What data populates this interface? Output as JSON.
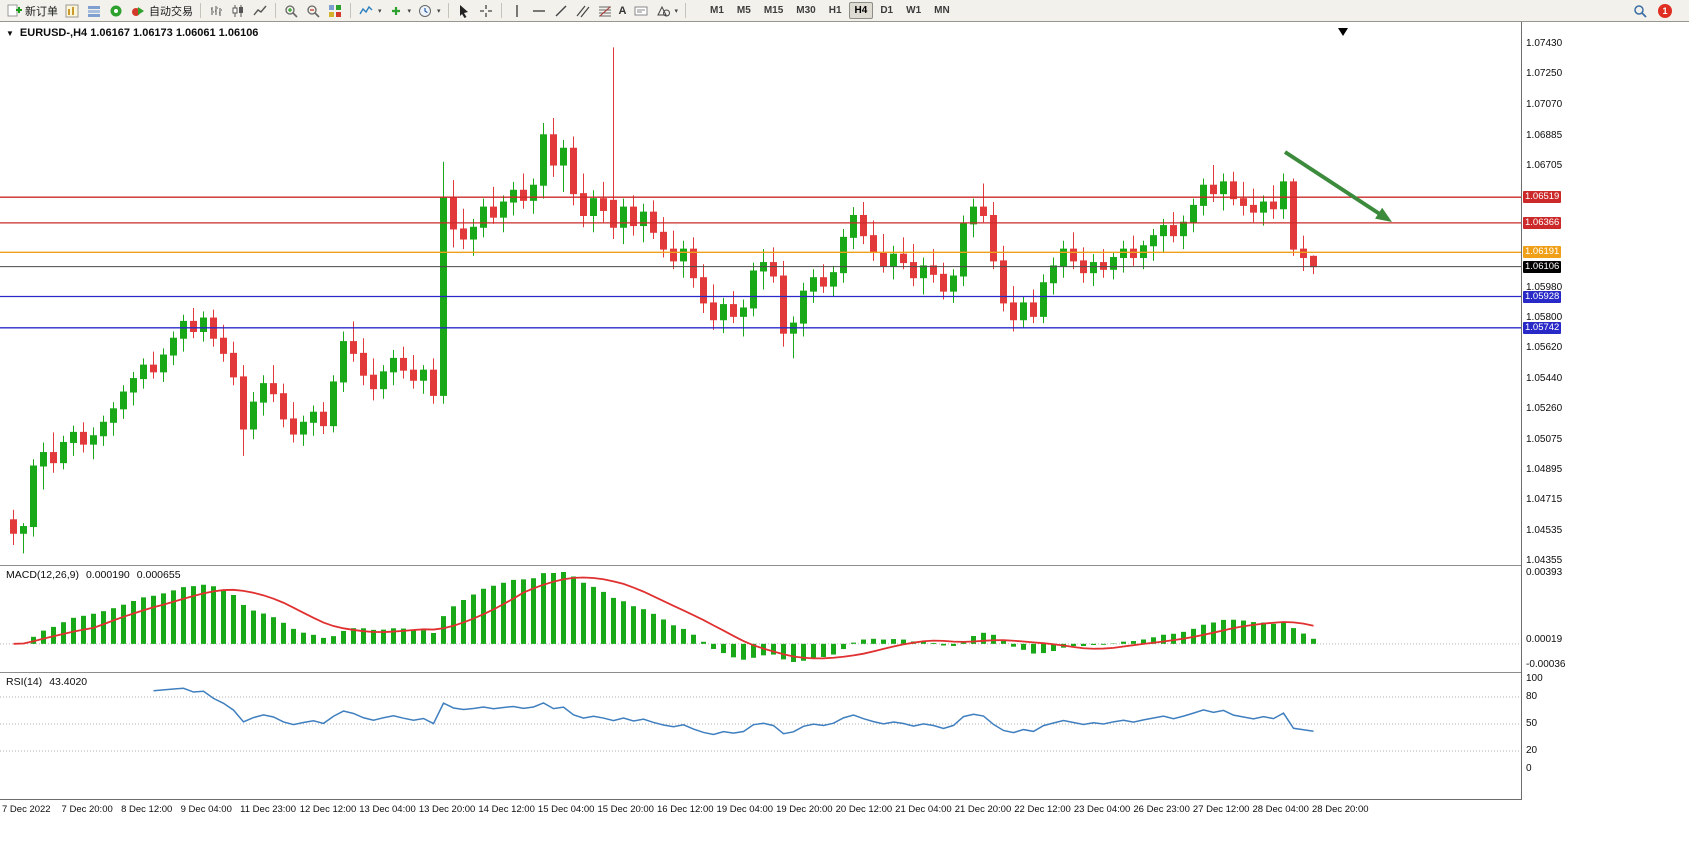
{
  "toolbar": {
    "new_order_label": "新订单",
    "auto_trading_label": "自动交易",
    "timeframes": [
      "M1",
      "M5",
      "M15",
      "M30",
      "H1",
      "H4",
      "D1",
      "W1",
      "MN"
    ],
    "active_timeframe": "H4",
    "notification_badge": "1"
  },
  "icons": {
    "collapse_arrow": "▼",
    "dropdown_arrow": "▾",
    "text_tool": "A"
  },
  "chart": {
    "title": "EURUSD-,H4  1.06167 1.06173 1.06061 1.06106"
  },
  "chart_data": {
    "type": "candlestick",
    "symbol": "EURUSD-",
    "timeframe": "H4",
    "open": "1.06167",
    "high": "1.06173",
    "low": "1.06061",
    "close": "1.06106",
    "up_color": "#18a818",
    "down_color": "#e23a3a",
    "price_axis": {
      "max": 1.0743,
      "min": 1.04355,
      "labels": [
        "1.07430",
        "1.07250",
        "1.07070",
        "1.06885",
        "1.06705",
        "1.05980",
        "1.05800",
        "1.05620",
        "1.05440",
        "1.05260",
        "1.05075",
        "1.04895",
        "1.04715",
        "1.04535",
        "1.04355"
      ]
    },
    "hlines": [
      {
        "price": 1.06519,
        "label": "1.06519",
        "color": "#cc2a2a"
      },
      {
        "price": 1.06366,
        "label": "1.06366",
        "color": "#cc2a2a"
      },
      {
        "price": 1.06191,
        "label": "1.06191",
        "color": "#efa018"
      },
      {
        "price": 1.05928,
        "label": "1.05928",
        "color": "#2929c8"
      },
      {
        "price": 1.05742,
        "label": "1.05742",
        "color": "#2929c8"
      }
    ],
    "current_price": {
      "value": 1.06106,
      "label": "1.06106",
      "line_color": "#4a4a4a",
      "tag_color": "#000000"
    },
    "arrow": {
      "from": [
        1285,
        130
      ],
      "to": [
        1392,
        200
      ],
      "color": "#3c8a3c"
    },
    "candles": [
      [
        1.046,
        1.0466,
        1.0445,
        1.0452
      ],
      [
        1.0452,
        1.0458,
        1.044,
        1.0456
      ],
      [
        1.0456,
        1.0496,
        1.045,
        1.0492
      ],
      [
        1.0492,
        1.0506,
        1.0478,
        1.05
      ],
      [
        1.05,
        1.0512,
        1.0488,
        1.0494
      ],
      [
        1.0494,
        1.051,
        1.049,
        1.0506
      ],
      [
        1.0506,
        1.0516,
        1.0498,
        1.0512
      ],
      [
        1.0512,
        1.0518,
        1.05,
        1.0505
      ],
      [
        1.0505,
        1.0515,
        1.0496,
        1.051
      ],
      [
        1.051,
        1.0522,
        1.0504,
        1.0518
      ],
      [
        1.0518,
        1.053,
        1.051,
        1.0526
      ],
      [
        1.0526,
        1.054,
        1.052,
        1.0536
      ],
      [
        1.0536,
        1.0548,
        1.0528,
        1.0544
      ],
      [
        1.0544,
        1.0556,
        1.0538,
        1.0552
      ],
      [
        1.0552,
        1.056,
        1.0544,
        1.0548
      ],
      [
        1.0548,
        1.0562,
        1.0542,
        1.0558
      ],
      [
        1.0558,
        1.0572,
        1.0552,
        1.0568
      ],
      [
        1.0568,
        1.0582,
        1.056,
        1.0578
      ],
      [
        1.0578,
        1.0586,
        1.0568,
        1.0572
      ],
      [
        1.0572,
        1.0584,
        1.0566,
        1.058
      ],
      [
        1.058,
        1.0585,
        1.0563,
        1.0568
      ],
      [
        1.0568,
        1.0576,
        1.0554,
        1.0559
      ],
      [
        1.0559,
        1.0566,
        1.054,
        1.0545
      ],
      [
        1.0545,
        1.0552,
        1.0498,
        1.0514
      ],
      [
        1.0514,
        1.0536,
        1.0508,
        1.053
      ],
      [
        1.053,
        1.0546,
        1.0522,
        1.0541
      ],
      [
        1.0541,
        1.0552,
        1.053,
        1.0535
      ],
      [
        1.0535,
        1.0541,
        1.0515,
        1.052
      ],
      [
        1.052,
        1.053,
        1.0506,
        1.0511
      ],
      [
        1.0511,
        1.0522,
        1.0504,
        1.0518
      ],
      [
        1.0518,
        1.0528,
        1.051,
        1.0524
      ],
      [
        1.0524,
        1.053,
        1.0511,
        1.0516
      ],
      [
        1.0516,
        1.0546,
        1.0512,
        1.0542
      ],
      [
        1.0542,
        1.0572,
        1.0536,
        1.0566
      ],
      [
        1.0566,
        1.0578,
        1.0554,
        1.0559
      ],
      [
        1.0559,
        1.0568,
        1.054,
        1.0546
      ],
      [
        1.0546,
        1.0556,
        1.0531,
        1.0538
      ],
      [
        1.0538,
        1.0552,
        1.0532,
        1.0548
      ],
      [
        1.0548,
        1.0561,
        1.054,
        1.0556
      ],
      [
        1.0556,
        1.0563,
        1.0544,
        1.0549
      ],
      [
        1.0549,
        1.0558,
        1.0538,
        1.0543
      ],
      [
        1.0543,
        1.0552,
        1.0535,
        1.0549
      ],
      [
        1.0549,
        1.0556,
        1.0529,
        1.0534
      ],
      [
        1.0534,
        1.0673,
        1.0529,
        1.0652
      ],
      [
        1.0652,
        1.0662,
        1.0622,
        1.0633
      ],
      [
        1.0633,
        1.0645,
        1.0621,
        1.0627
      ],
      [
        1.0627,
        1.0639,
        1.0617,
        1.0634
      ],
      [
        1.0634,
        1.0651,
        1.0628,
        1.0646
      ],
      [
        1.0646,
        1.0658,
        1.0636,
        1.064
      ],
      [
        1.064,
        1.0653,
        1.0631,
        1.0649
      ],
      [
        1.0649,
        1.0661,
        1.0641,
        1.0656
      ],
      [
        1.0656,
        1.0666,
        1.0645,
        1.065
      ],
      [
        1.065,
        1.0663,
        1.0642,
        1.0659
      ],
      [
        1.0659,
        1.0696,
        1.0651,
        1.0689
      ],
      [
        1.0689,
        1.0699,
        1.0664,
        1.0671
      ],
      [
        1.0671,
        1.0686,
        1.0655,
        1.0681
      ],
      [
        1.0681,
        1.0688,
        1.0647,
        1.0654
      ],
      [
        1.0654,
        1.0666,
        1.0634,
        1.0641
      ],
      [
        1.0641,
        1.0656,
        1.0631,
        1.0651
      ],
      [
        1.0651,
        1.0661,
        1.0637,
        1.0644
      ],
      [
        1.065,
        1.0741,
        1.0627,
        1.0634
      ],
      [
        1.0634,
        1.0651,
        1.0624,
        1.0646
      ],
      [
        1.0646,
        1.0653,
        1.0629,
        1.0635
      ],
      [
        1.0635,
        1.0648,
        1.0625,
        1.0643
      ],
      [
        1.0643,
        1.065,
        1.0627,
        1.0631
      ],
      [
        1.0631,
        1.064,
        1.0616,
        1.0621
      ],
      [
        1.0621,
        1.0632,
        1.0609,
        1.0614
      ],
      [
        1.0614,
        1.0626,
        1.0604,
        1.0621
      ],
      [
        1.0621,
        1.0628,
        1.0598,
        1.0604
      ],
      [
        1.0604,
        1.0612,
        1.0583,
        1.0589
      ],
      [
        1.0589,
        1.06,
        1.0573,
        1.0579
      ],
      [
        1.0579,
        1.0592,
        1.0571,
        1.0588
      ],
      [
        1.0588,
        1.0596,
        1.0577,
        1.0581
      ],
      [
        1.0581,
        1.0591,
        1.0569,
        1.0586
      ],
      [
        1.0586,
        1.0613,
        1.0581,
        1.0608
      ],
      [
        1.0608,
        1.0621,
        1.0597,
        1.0613
      ],
      [
        1.0613,
        1.0622,
        1.0601,
        1.0605
      ],
      [
        1.0605,
        1.0614,
        1.0563,
        1.0571
      ],
      [
        1.0571,
        1.0581,
        1.0556,
        1.0577
      ],
      [
        1.0577,
        1.0601,
        1.0569,
        1.0596
      ],
      [
        1.0596,
        1.0609,
        1.0589,
        1.0604
      ],
      [
        1.0604,
        1.0612,
        1.0595,
        1.0599
      ],
      [
        1.0599,
        1.0611,
        1.0593,
        1.0607
      ],
      [
        1.0607,
        1.0633,
        1.0601,
        1.0628
      ],
      [
        1.0628,
        1.0646,
        1.0621,
        1.0641
      ],
      [
        1.0641,
        1.0649,
        1.0624,
        1.0629
      ],
      [
        1.0629,
        1.0638,
        1.0614,
        1.0619
      ],
      [
        1.0619,
        1.063,
        1.0607,
        1.0611
      ],
      [
        1.0611,
        1.0623,
        1.0603,
        1.0618
      ],
      [
        1.0618,
        1.0628,
        1.0609,
        1.0613
      ],
      [
        1.0613,
        1.0624,
        1.0599,
        1.0604
      ],
      [
        1.0604,
        1.0616,
        1.0594,
        1.0611
      ],
      [
        1.0611,
        1.0621,
        1.0601,
        1.0606
      ],
      [
        1.0606,
        1.0613,
        1.0591,
        1.0596
      ],
      [
        1.0596,
        1.0609,
        1.0589,
        1.0605
      ],
      [
        1.0605,
        1.0641,
        1.0599,
        1.0636
      ],
      [
        1.0636,
        1.0651,
        1.0628,
        1.0646
      ],
      [
        1.0646,
        1.066,
        1.0637,
        1.0641
      ],
      [
        1.0641,
        1.0649,
        1.0609,
        1.0614
      ],
      [
        1.0614,
        1.0623,
        1.0584,
        1.0589
      ],
      [
        1.0589,
        1.0599,
        1.0572,
        1.0579
      ],
      [
        1.0579,
        1.0593,
        1.0574,
        1.0589
      ],
      [
        1.0589,
        1.0597,
        1.0577,
        1.0581
      ],
      [
        1.0581,
        1.0606,
        1.0577,
        1.0601
      ],
      [
        1.0601,
        1.0616,
        1.0594,
        1.0611
      ],
      [
        1.0611,
        1.0626,
        1.0604,
        1.0621
      ],
      [
        1.0621,
        1.0631,
        1.0609,
        1.0614
      ],
      [
        1.0614,
        1.0622,
        1.0601,
        1.0607
      ],
      [
        1.0607,
        1.0618,
        1.0599,
        1.0613
      ],
      [
        1.0613,
        1.0621,
        1.0604,
        1.0609
      ],
      [
        1.0609,
        1.0619,
        1.0603,
        1.0616
      ],
      [
        1.0616,
        1.0626,
        1.0607,
        1.0621
      ],
      [
        1.0621,
        1.0629,
        1.0611,
        1.0616
      ],
      [
        1.0616,
        1.0626,
        1.0609,
        1.0623
      ],
      [
        1.0623,
        1.0633,
        1.0614,
        1.0629
      ],
      [
        1.0629,
        1.0639,
        1.0619,
        1.0635
      ],
      [
        1.0635,
        1.0643,
        1.0625,
        1.0629
      ],
      [
        1.0629,
        1.0641,
        1.0621,
        1.0637
      ],
      [
        1.0637,
        1.0651,
        1.0631,
        1.0647
      ],
      [
        1.0647,
        1.0663,
        1.0641,
        1.0659
      ],
      [
        1.0659,
        1.0671,
        1.0649,
        1.0654
      ],
      [
        1.0654,
        1.0666,
        1.0644,
        1.0661
      ],
      [
        1.0661,
        1.0667,
        1.0647,
        1.0651
      ],
      [
        1.0651,
        1.0661,
        1.0641,
        1.0647
      ],
      [
        1.0647,
        1.0657,
        1.0637,
        1.0643
      ],
      [
        1.0643,
        1.0653,
        1.0635,
        1.0649
      ],
      [
        1.0649,
        1.0659,
        1.0639,
        1.0645
      ],
      [
        1.0645,
        1.0666,
        1.0639,
        1.0661
      ],
      [
        1.0661,
        1.0663,
        1.0617,
        1.0621
      ],
      [
        1.0621,
        1.0629,
        1.0608,
        1.0616
      ],
      [
        1.06167,
        1.06173,
        1.06061,
        1.06106
      ]
    ],
    "time_axis": [
      "7 Dec 2022",
      "7 Dec 20:00",
      "8 Dec 12:00",
      "9 Dec 04:00",
      "11 Dec 23:00",
      "12 Dec 12:00",
      "13 Dec 04:00",
      "13 Dec 20:00",
      "14 Dec 12:00",
      "15 Dec 04:00",
      "15 Dec 20:00",
      "16 Dec 12:00",
      "19 Dec 04:00",
      "19 Dec 20:00",
      "20 Dec 12:00",
      "21 Dec 04:00",
      "21 Dec 20:00",
      "22 Dec 12:00",
      "23 Dec 04:00",
      "26 Dec 23:00",
      "27 Dec 12:00",
      "28 Dec 04:00",
      "28 Dec 20:00"
    ]
  },
  "macd": {
    "label": "MACD(12,26,9)",
    "value_main": "0.000190",
    "value_signal": "0.000655",
    "axis_labels": [
      "0.00393",
      "0.00019",
      "-0.00036"
    ],
    "fast": 12,
    "slow": 26,
    "signal": 9,
    "histogram_color": "#18a818",
    "signal_color": "#e03030"
  },
  "rsi": {
    "label": "RSI(14)",
    "value": "43.4020",
    "period": 14,
    "axis_labels": [
      "100",
      "80",
      "50",
      "20",
      "0"
    ],
    "levels": [
      80,
      50,
      20
    ],
    "line_color": "#3f7fbf"
  }
}
